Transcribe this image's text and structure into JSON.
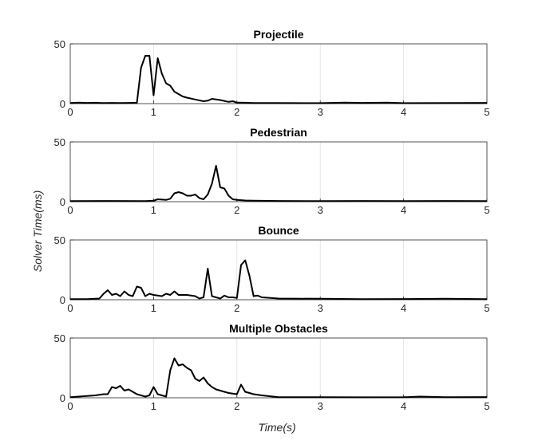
{
  "chart_data": [
    {
      "type": "line",
      "title": "Projectile",
      "xlim": [
        0,
        5
      ],
      "ylim": [
        0,
        50
      ],
      "xticks": [
        "0",
        "1",
        "2",
        "3",
        "4",
        "5"
      ],
      "yticks": [
        "0",
        "50"
      ],
      "grid": "x",
      "series": [
        {
          "x": [
            0,
            0.1,
            0.2,
            0.3,
            0.4,
            0.5,
            0.6,
            0.7,
            0.8,
            0.85,
            0.9,
            0.95,
            1.0,
            1.05,
            1.1,
            1.15,
            1.2,
            1.25,
            1.3,
            1.35,
            1.4,
            1.5,
            1.6,
            1.65,
            1.7,
            1.8,
            1.9,
            1.95,
            2.0,
            2.1,
            2.2,
            2.5,
            3.0,
            3.3,
            3.5,
            3.8,
            4.0,
            4.5,
            5.0
          ],
          "y": [
            0.5,
            0.8,
            0.6,
            0.7,
            0.5,
            0.6,
            0.5,
            0.6,
            0.7,
            30,
            40,
            40,
            7,
            38,
            25,
            17,
            15,
            10,
            8,
            6,
            5,
            3.5,
            2,
            2.5,
            4,
            3,
            1.5,
            2,
            0.8,
            0.7,
            0.5,
            0.5,
            0.4,
            0.8,
            0.6,
            0.8,
            0.4,
            0.5,
            0.6
          ]
        }
      ]
    },
    {
      "type": "line",
      "title": "Pedestrian",
      "xlim": [
        0,
        5
      ],
      "ylim": [
        0,
        50
      ],
      "xticks": [
        "0",
        "1",
        "2",
        "3",
        "4",
        "5"
      ],
      "yticks": [
        "0",
        "50"
      ],
      "grid": "x",
      "series": [
        {
          "x": [
            0,
            0.5,
            0.9,
            1.0,
            1.05,
            1.15,
            1.2,
            1.25,
            1.3,
            1.35,
            1.4,
            1.45,
            1.5,
            1.55,
            1.6,
            1.65,
            1.7,
            1.75,
            1.8,
            1.85,
            1.9,
            1.95,
            2.0,
            2.1,
            2.2,
            2.5,
            3.0,
            3.5,
            4.0,
            4.5,
            5.0
          ],
          "y": [
            0.5,
            0.6,
            0.5,
            0.8,
            2,
            1.5,
            2.5,
            7,
            8,
            7,
            5,
            5,
            6,
            3,
            2,
            6,
            15,
            30,
            12,
            11,
            5,
            2,
            1.5,
            1,
            0.8,
            0.6,
            0.5,
            0.6,
            0.5,
            0.6,
            0.5
          ]
        }
      ]
    },
    {
      "type": "line",
      "title": "Bounce",
      "xlim": [
        0,
        5
      ],
      "ylim": [
        0,
        50
      ],
      "xticks": [
        "0",
        "1",
        "2",
        "3",
        "4",
        "5"
      ],
      "yticks": [
        "0",
        "50"
      ],
      "grid": "x",
      "series": [
        {
          "x": [
            0,
            0.2,
            0.35,
            0.4,
            0.45,
            0.5,
            0.55,
            0.6,
            0.65,
            0.7,
            0.75,
            0.8,
            0.85,
            0.9,
            0.95,
            1.0,
            1.1,
            1.15,
            1.2,
            1.25,
            1.3,
            1.4,
            1.5,
            1.55,
            1.6,
            1.65,
            1.7,
            1.75,
            1.8,
            1.85,
            1.9,
            1.95,
            2.0,
            2.05,
            2.1,
            2.15,
            2.2,
            2.25,
            2.3,
            2.4,
            2.5,
            3.0,
            3.5,
            4.0,
            4.5,
            5.0
          ],
          "y": [
            0.5,
            0.5,
            1,
            5,
            8,
            4,
            5,
            3,
            7,
            4,
            3,
            11,
            10,
            3,
            5,
            4,
            3,
            5,
            4,
            7,
            4,
            4,
            3,
            1,
            2,
            26,
            3,
            2,
            1,
            3.5,
            2,
            2,
            1.5,
            29,
            33,
            20,
            3,
            3.5,
            2,
            1.5,
            1,
            0.8,
            0.5,
            0.6,
            0.8,
            0.5
          ]
        }
      ]
    },
    {
      "type": "line",
      "title": "Multiple Obstacles",
      "xlim": [
        0,
        5
      ],
      "ylim": [
        0,
        50
      ],
      "xticks": [
        "0",
        "1",
        "2",
        "3",
        "4",
        "5"
      ],
      "yticks": [
        "0",
        "50"
      ],
      "grid": "x",
      "series": [
        {
          "x": [
            0,
            0.1,
            0.2,
            0.3,
            0.4,
            0.45,
            0.5,
            0.55,
            0.6,
            0.65,
            0.7,
            0.75,
            0.8,
            0.85,
            0.9,
            0.95,
            1.0,
            1.05,
            1.1,
            1.15,
            1.2,
            1.25,
            1.3,
            1.35,
            1.4,
            1.45,
            1.5,
            1.55,
            1.6,
            1.65,
            1.7,
            1.75,
            1.8,
            1.9,
            2.0,
            2.05,
            2.1,
            2.15,
            2.2,
            2.3,
            2.5,
            3.0,
            3.5,
            4.0,
            4.2,
            4.5,
            5.0
          ],
          "y": [
            0.5,
            1,
            1.5,
            2,
            3,
            3,
            9,
            8,
            10,
            6,
            7,
            5,
            3,
            2,
            1,
            2,
            9,
            3,
            2,
            1,
            23,
            33,
            27,
            28,
            25,
            23,
            16,
            14,
            17,
            12,
            9,
            7,
            6,
            4,
            3,
            11,
            5,
            4,
            3,
            2,
            0.5,
            0.5,
            0.4,
            0.5,
            1,
            0.5,
            0.6
          ]
        }
      ]
    }
  ],
  "figure": {
    "ylabel": "Solver Time(ms)",
    "xlabel": "Time(s)"
  }
}
